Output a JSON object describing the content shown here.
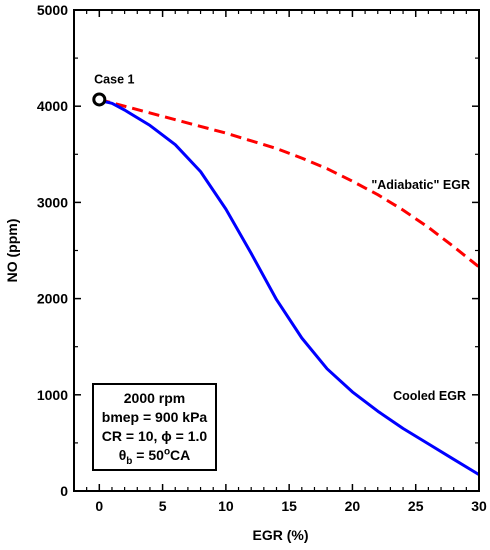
{
  "chart_data": {
    "type": "line",
    "title": "",
    "xlabel": "EGR (%)",
    "ylabel": "NO (ppm)",
    "xlim": [
      -2,
      30
    ],
    "ylim": [
      0,
      5000
    ],
    "xticks": [
      0,
      5,
      10,
      15,
      20,
      25,
      30
    ],
    "yticks": [
      0,
      1000,
      2000,
      3000,
      4000,
      5000
    ],
    "grid": false,
    "series": [
      {
        "name": "\"Adiabatic\" EGR",
        "style": "dashed",
        "color": "#ff0000",
        "x": [
          0,
          2,
          4,
          6,
          8,
          10,
          12,
          14,
          16,
          18,
          20,
          22,
          24,
          26,
          28,
          30
        ],
        "y": [
          4070,
          4000,
          3930,
          3860,
          3790,
          3720,
          3640,
          3560,
          3460,
          3350,
          3220,
          3080,
          2920,
          2740,
          2540,
          2330
        ]
      },
      {
        "name": "Cooled EGR",
        "style": "solid",
        "color": "#0000ff",
        "x": [
          0,
          1,
          2,
          4,
          6,
          8,
          10,
          12,
          14,
          16,
          18,
          20,
          22,
          24,
          26,
          28,
          30
        ],
        "y": [
          4060,
          4030,
          3960,
          3800,
          3600,
          3320,
          2930,
          2470,
          1990,
          1590,
          1270,
          1030,
          830,
          650,
          490,
          330,
          170
        ]
      }
    ],
    "marker": {
      "label": "Case 1",
      "x": 0,
      "y": 4070
    },
    "info_box": {
      "line1": "2000 rpm",
      "line2": "bmep = 900 kPa",
      "line3_prefix": "CR = 10, ",
      "line3_phi": "ϕ",
      "line3_suffix": " = 1.0",
      "line4_theta": "θ",
      "line4_sub": "b",
      "line4_mid": " = 50",
      "line4_sup": "o",
      "line4_end": "CA"
    }
  }
}
